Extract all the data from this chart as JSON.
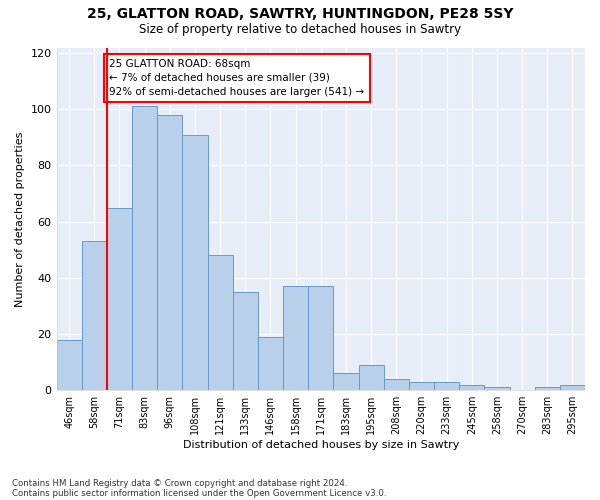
{
  "title_line1": "25, GLATTON ROAD, SAWTRY, HUNTINGDON, PE28 5SY",
  "title_line2": "Size of property relative to detached houses in Sawtry",
  "xlabel": "Distribution of detached houses by size in Sawtry",
  "ylabel": "Number of detached properties",
  "bar_labels": [
    "46sqm",
    "58sqm",
    "71sqm",
    "83sqm",
    "96sqm",
    "108sqm",
    "121sqm",
    "133sqm",
    "146sqm",
    "158sqm",
    "171sqm",
    "183sqm",
    "195sqm",
    "208sqm",
    "220sqm",
    "233sqm",
    "245sqm",
    "258sqm",
    "270sqm",
    "283sqm",
    "295sqm"
  ],
  "bar_values": [
    18,
    53,
    65,
    101,
    98,
    91,
    48,
    35,
    19,
    37,
    37,
    6,
    9,
    4,
    3,
    3,
    2,
    1,
    0,
    1,
    2
  ],
  "bar_color": "#b8d0ea",
  "bar_edge_color": "#6699cc",
  "red_line_index": 2,
  "annotation_text": "25 GLATTON ROAD: 68sqm\n← 7% of detached houses are smaller (39)\n92% of semi-detached houses are larger (541) →",
  "ylim": [
    0,
    122
  ],
  "yticks": [
    0,
    20,
    40,
    60,
    80,
    100,
    120
  ],
  "footer_line1": "Contains HM Land Registry data © Crown copyright and database right 2024.",
  "footer_line2": "Contains public sector information licensed under the Open Government Licence v3.0.",
  "background_color": "#ffffff",
  "plot_background": "#e8eef8"
}
